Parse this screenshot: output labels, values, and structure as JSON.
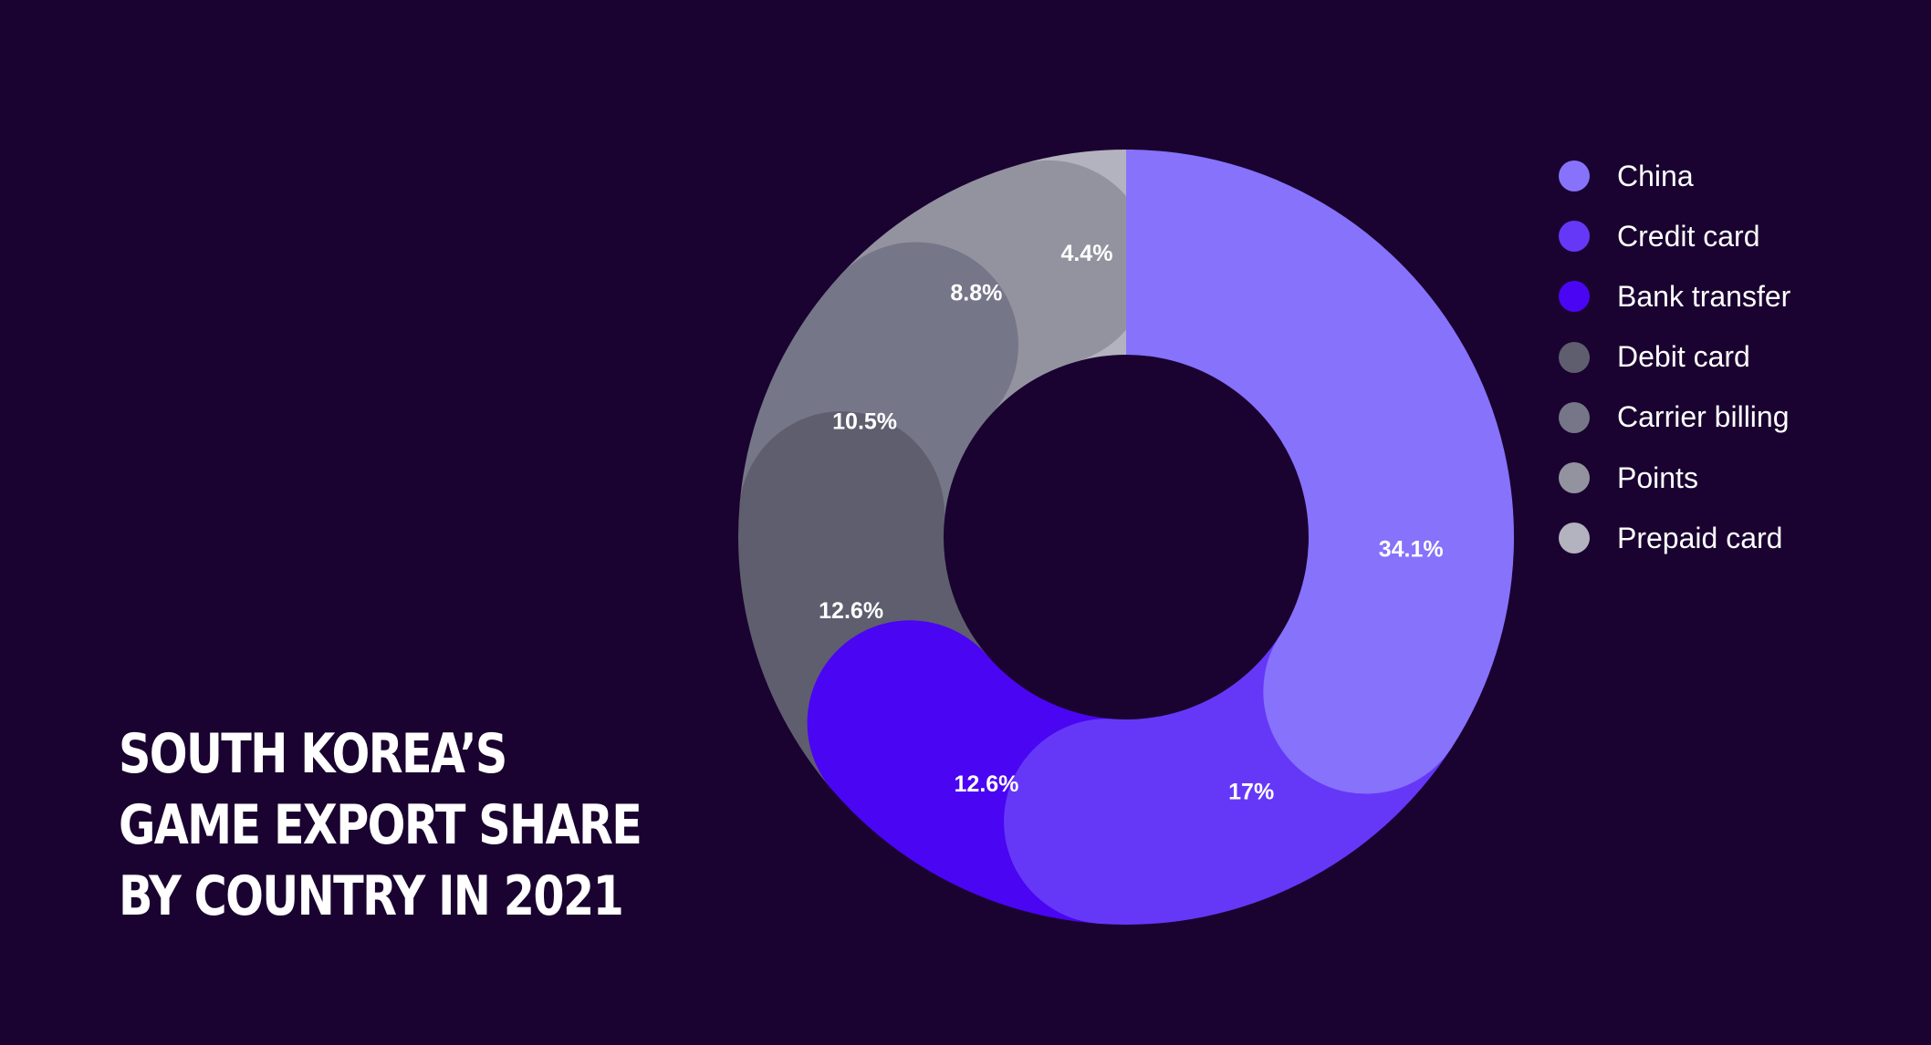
{
  "chart_data": {
    "type": "pie",
    "title_lines": [
      "SOUTH KOREA’S",
      "GAME EXPORT SHARE",
      "BY COUNTRY IN 2021"
    ],
    "legend_position": "right",
    "slices": [
      {
        "name": "China",
        "value": 34.1,
        "label": "34.1%",
        "color": "#8672fb"
      },
      {
        "name": "Credit card",
        "value": 17,
        "label": "17%",
        "color": "#6538f8"
      },
      {
        "name": "Bank transfer",
        "value": 12.6,
        "label": "12.6%",
        "color": "#4a05f3"
      },
      {
        "name": "Debit card",
        "value": 12.6,
        "label": "12.6%",
        "color": "#5f5e6e"
      },
      {
        "name": "Carrier billing",
        "value": 10.5,
        "label": "10.5%",
        "color": "#767689"
      },
      {
        "name": "Points",
        "value": 8.8,
        "label": "8.8%",
        "color": "#9393a0"
      },
      {
        "name": "Prepaid card",
        "value": 4.4,
        "label": "4.4%",
        "color": "#b3b3bf"
      }
    ]
  },
  "colors": {
    "background": "#1a0330",
    "text": "#ffffff"
  }
}
